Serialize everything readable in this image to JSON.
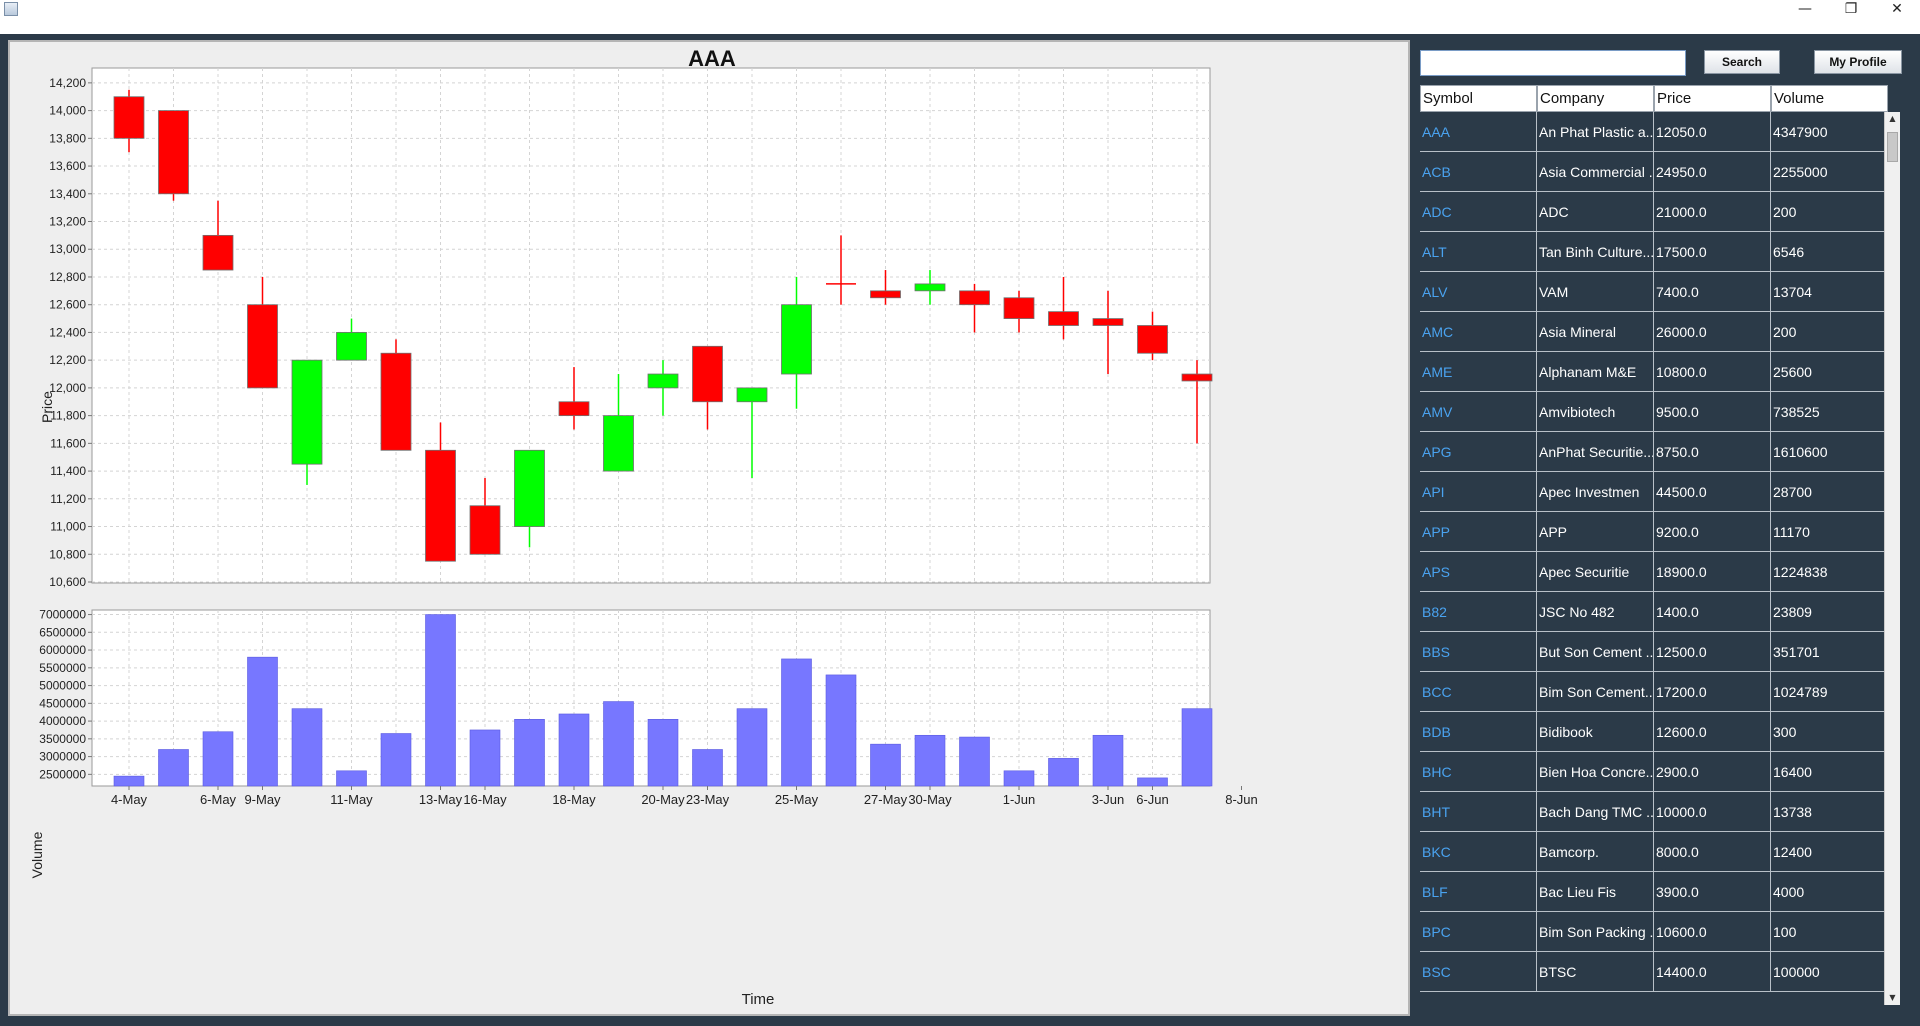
{
  "window": {
    "minimize": "—",
    "restore": "❐",
    "close": "✕"
  },
  "toolbar": {
    "search_value": "",
    "search_label": "Search",
    "profile_label": "My Profile"
  },
  "table": {
    "headers": [
      "Symbol",
      "Company",
      "Price",
      "Volume"
    ],
    "rows": [
      [
        "AAA",
        "An Phat Plastic a...",
        "12050.0",
        "4347900"
      ],
      [
        "ACB",
        "Asia Commercial ...",
        "24950.0",
        "2255000"
      ],
      [
        "ADC",
        "ADC",
        "21000.0",
        "200"
      ],
      [
        "ALT",
        "Tan Binh Culture...",
        "17500.0",
        "6546"
      ],
      [
        "ALV",
        "VAM",
        "7400.0",
        "13704"
      ],
      [
        "AMC",
        "Asia Mineral",
        "26000.0",
        "200"
      ],
      [
        "AME",
        "Alphanam M&E",
        "10800.0",
        "25600"
      ],
      [
        "AMV",
        "Amvibiotech",
        "9500.0",
        "738525"
      ],
      [
        "APG",
        "AnPhat Securitie...",
        "8750.0",
        "1610600"
      ],
      [
        "API",
        "Apec Investmen",
        "44500.0",
        "28700"
      ],
      [
        "APP",
        "APP",
        "9200.0",
        "11170"
      ],
      [
        "APS",
        "Apec Securitie",
        "18900.0",
        "1224838"
      ],
      [
        "B82",
        "JSC No 482",
        "1400.0",
        "23809"
      ],
      [
        "BBS",
        "But Son Cement ...",
        "12500.0",
        "351701"
      ],
      [
        "BCC",
        "Bim Son Cement...",
        "17200.0",
        "1024789"
      ],
      [
        "BDB",
        "Bidibook",
        "12600.0",
        "300"
      ],
      [
        "BHC",
        "Bien Hoa Concre...",
        "2900.0",
        "16400"
      ],
      [
        "BHT",
        "Bach Dang TMC ...",
        "10000.0",
        "13738"
      ],
      [
        "BKC",
        "Bamcorp.",
        "8000.0",
        "12400"
      ],
      [
        "BLF",
        "Bac Lieu Fis",
        "3900.0",
        "4000"
      ],
      [
        "BPC",
        "Bim Son Packing ...",
        "10600.0",
        "100"
      ],
      [
        "BSC",
        "BTSC",
        "14400.0",
        "100000"
      ]
    ]
  },
  "colors": {
    "up": "#00ff00",
    "down": "#ff0000",
    "volume": "#7777ff"
  },
  "chart_data": {
    "type": "candlestick",
    "title": "AAA",
    "price_label": "Price",
    "volume_label": "Volume",
    "xlabel": "Time",
    "price_ylim": [
      10600,
      14300
    ],
    "price_ticks": [
      "14,200",
      "14,000",
      "13,800",
      "13,600",
      "13,400",
      "13,200",
      "13,000",
      "12,800",
      "12,600",
      "12,400",
      "12,200",
      "12,000",
      "11,800",
      "11,600",
      "11,400",
      "11,200",
      "11,000",
      "10,800",
      "10,600"
    ],
    "volume_ylim": [
      2200000,
      7100000
    ],
    "volume_ticks": [
      "7000000",
      "6500000",
      "6000000",
      "5500000",
      "5000000",
      "4500000",
      "4000000",
      "3500000",
      "3000000",
      "2500000"
    ],
    "x_tick_labels": [
      "4-May",
      "6-May",
      "9-May",
      "11-May",
      "13-May",
      "16-May",
      "18-May",
      "20-May",
      "23-May",
      "25-May",
      "27-May",
      "30-May",
      "1-Jun",
      "3-Jun",
      "6-Jun",
      "8-Jun"
    ],
    "x_tick_days": [
      0,
      2,
      3,
      5,
      7,
      8,
      10,
      12,
      13,
      15,
      17,
      18,
      20,
      22,
      23,
      25
    ],
    "candles": [
      {
        "day": 0,
        "open": 13800,
        "close": 14100,
        "high": 14150,
        "low": 13700,
        "dir": "down"
      },
      {
        "day": 1,
        "open": 13400,
        "close": 14000,
        "high": 14000,
        "low": 13350,
        "dir": "down"
      },
      {
        "day": 2,
        "open": 12850,
        "close": 13100,
        "high": 13350,
        "low": 12850,
        "dir": "down"
      },
      {
        "day": 3,
        "open": 12000,
        "close": 12600,
        "high": 12800,
        "low": 12000,
        "dir": "down"
      },
      {
        "day": 4,
        "open": 11450,
        "close": 12200,
        "high": 12200,
        "low": 11300,
        "dir": "up"
      },
      {
        "day": 5,
        "open": 12200,
        "close": 12400,
        "high": 12500,
        "low": 12200,
        "dir": "up"
      },
      {
        "day": 6,
        "open": 11550,
        "close": 12250,
        "high": 12350,
        "low": 11550,
        "dir": "down"
      },
      {
        "day": 7,
        "open": 10750,
        "close": 11550,
        "high": 11750,
        "low": 10750,
        "dir": "down"
      },
      {
        "day": 8,
        "open": 10800,
        "close": 11150,
        "high": 11350,
        "low": 10800,
        "dir": "down"
      },
      {
        "day": 9,
        "open": 11000,
        "close": 11550,
        "high": 11550,
        "low": 10850,
        "dir": "up"
      },
      {
        "day": 10,
        "open": 11800,
        "close": 11900,
        "high": 12150,
        "low": 11700,
        "dir": "down"
      },
      {
        "day": 11,
        "open": 11400,
        "close": 11800,
        "high": 12100,
        "low": 11400,
        "dir": "up"
      },
      {
        "day": 12,
        "open": 12000,
        "close": 12100,
        "high": 12200,
        "low": 11800,
        "dir": "up"
      },
      {
        "day": 13,
        "open": 11900,
        "close": 12300,
        "high": 12300,
        "low": 11700,
        "dir": "down"
      },
      {
        "day": 14,
        "open": 11900,
        "close": 12000,
        "high": 12000,
        "low": 11350,
        "dir": "up"
      },
      {
        "day": 15,
        "open": 12100,
        "close": 12600,
        "high": 12800,
        "low": 11850,
        "dir": "up"
      },
      {
        "day": 16,
        "open": 12750,
        "close": 12750,
        "high": 13100,
        "low": 12600,
        "dir": "down"
      },
      {
        "day": 17,
        "open": 12650,
        "close": 12700,
        "high": 12850,
        "low": 12600,
        "dir": "down"
      },
      {
        "day": 18,
        "open": 12700,
        "close": 12750,
        "high": 12850,
        "low": 12600,
        "dir": "up"
      },
      {
        "day": 19,
        "open": 12600,
        "close": 12700,
        "high": 12750,
        "low": 12400,
        "dir": "down"
      },
      {
        "day": 20,
        "open": 12500,
        "close": 12650,
        "high": 12700,
        "low": 12400,
        "dir": "down"
      },
      {
        "day": 21,
        "open": 12450,
        "close": 12550,
        "high": 12800,
        "low": 12350,
        "dir": "down"
      },
      {
        "day": 22,
        "open": 12450,
        "close": 12500,
        "high": 12700,
        "low": 12100,
        "dir": "down"
      },
      {
        "day": 23,
        "open": 12250,
        "close": 12450,
        "high": 12550,
        "low": 12200,
        "dir": "down"
      },
      {
        "day": 24,
        "open": 12050,
        "close": 12100,
        "high": 12200,
        "low": 11600,
        "dir": "down"
      }
    ],
    "volumes": [
      {
        "day": 0,
        "value": 2450000
      },
      {
        "day": 1,
        "value": 3200000
      },
      {
        "day": 2,
        "value": 3700000
      },
      {
        "day": 3,
        "value": 5800000
      },
      {
        "day": 4,
        "value": 4350000
      },
      {
        "day": 5,
        "value": 2600000
      },
      {
        "day": 6,
        "value": 3650000
      },
      {
        "day": 7,
        "value": 7000000
      },
      {
        "day": 8,
        "value": 3750000
      },
      {
        "day": 9,
        "value": 4050000
      },
      {
        "day": 10,
        "value": 4200000
      },
      {
        "day": 11,
        "value": 4550000
      },
      {
        "day": 12,
        "value": 4050000
      },
      {
        "day": 13,
        "value": 3200000
      },
      {
        "day": 14,
        "value": 4350000
      },
      {
        "day": 15,
        "value": 5750000
      },
      {
        "day": 16,
        "value": 5300000
      },
      {
        "day": 17,
        "value": 3350000
      },
      {
        "day": 18,
        "value": 3600000
      },
      {
        "day": 19,
        "value": 3550000
      },
      {
        "day": 20,
        "value": 2600000
      },
      {
        "day": 21,
        "value": 2950000
      },
      {
        "day": 22,
        "value": 3600000
      },
      {
        "day": 23,
        "value": 2400000
      },
      {
        "day": 24,
        "value": 4350000
      }
    ]
  }
}
